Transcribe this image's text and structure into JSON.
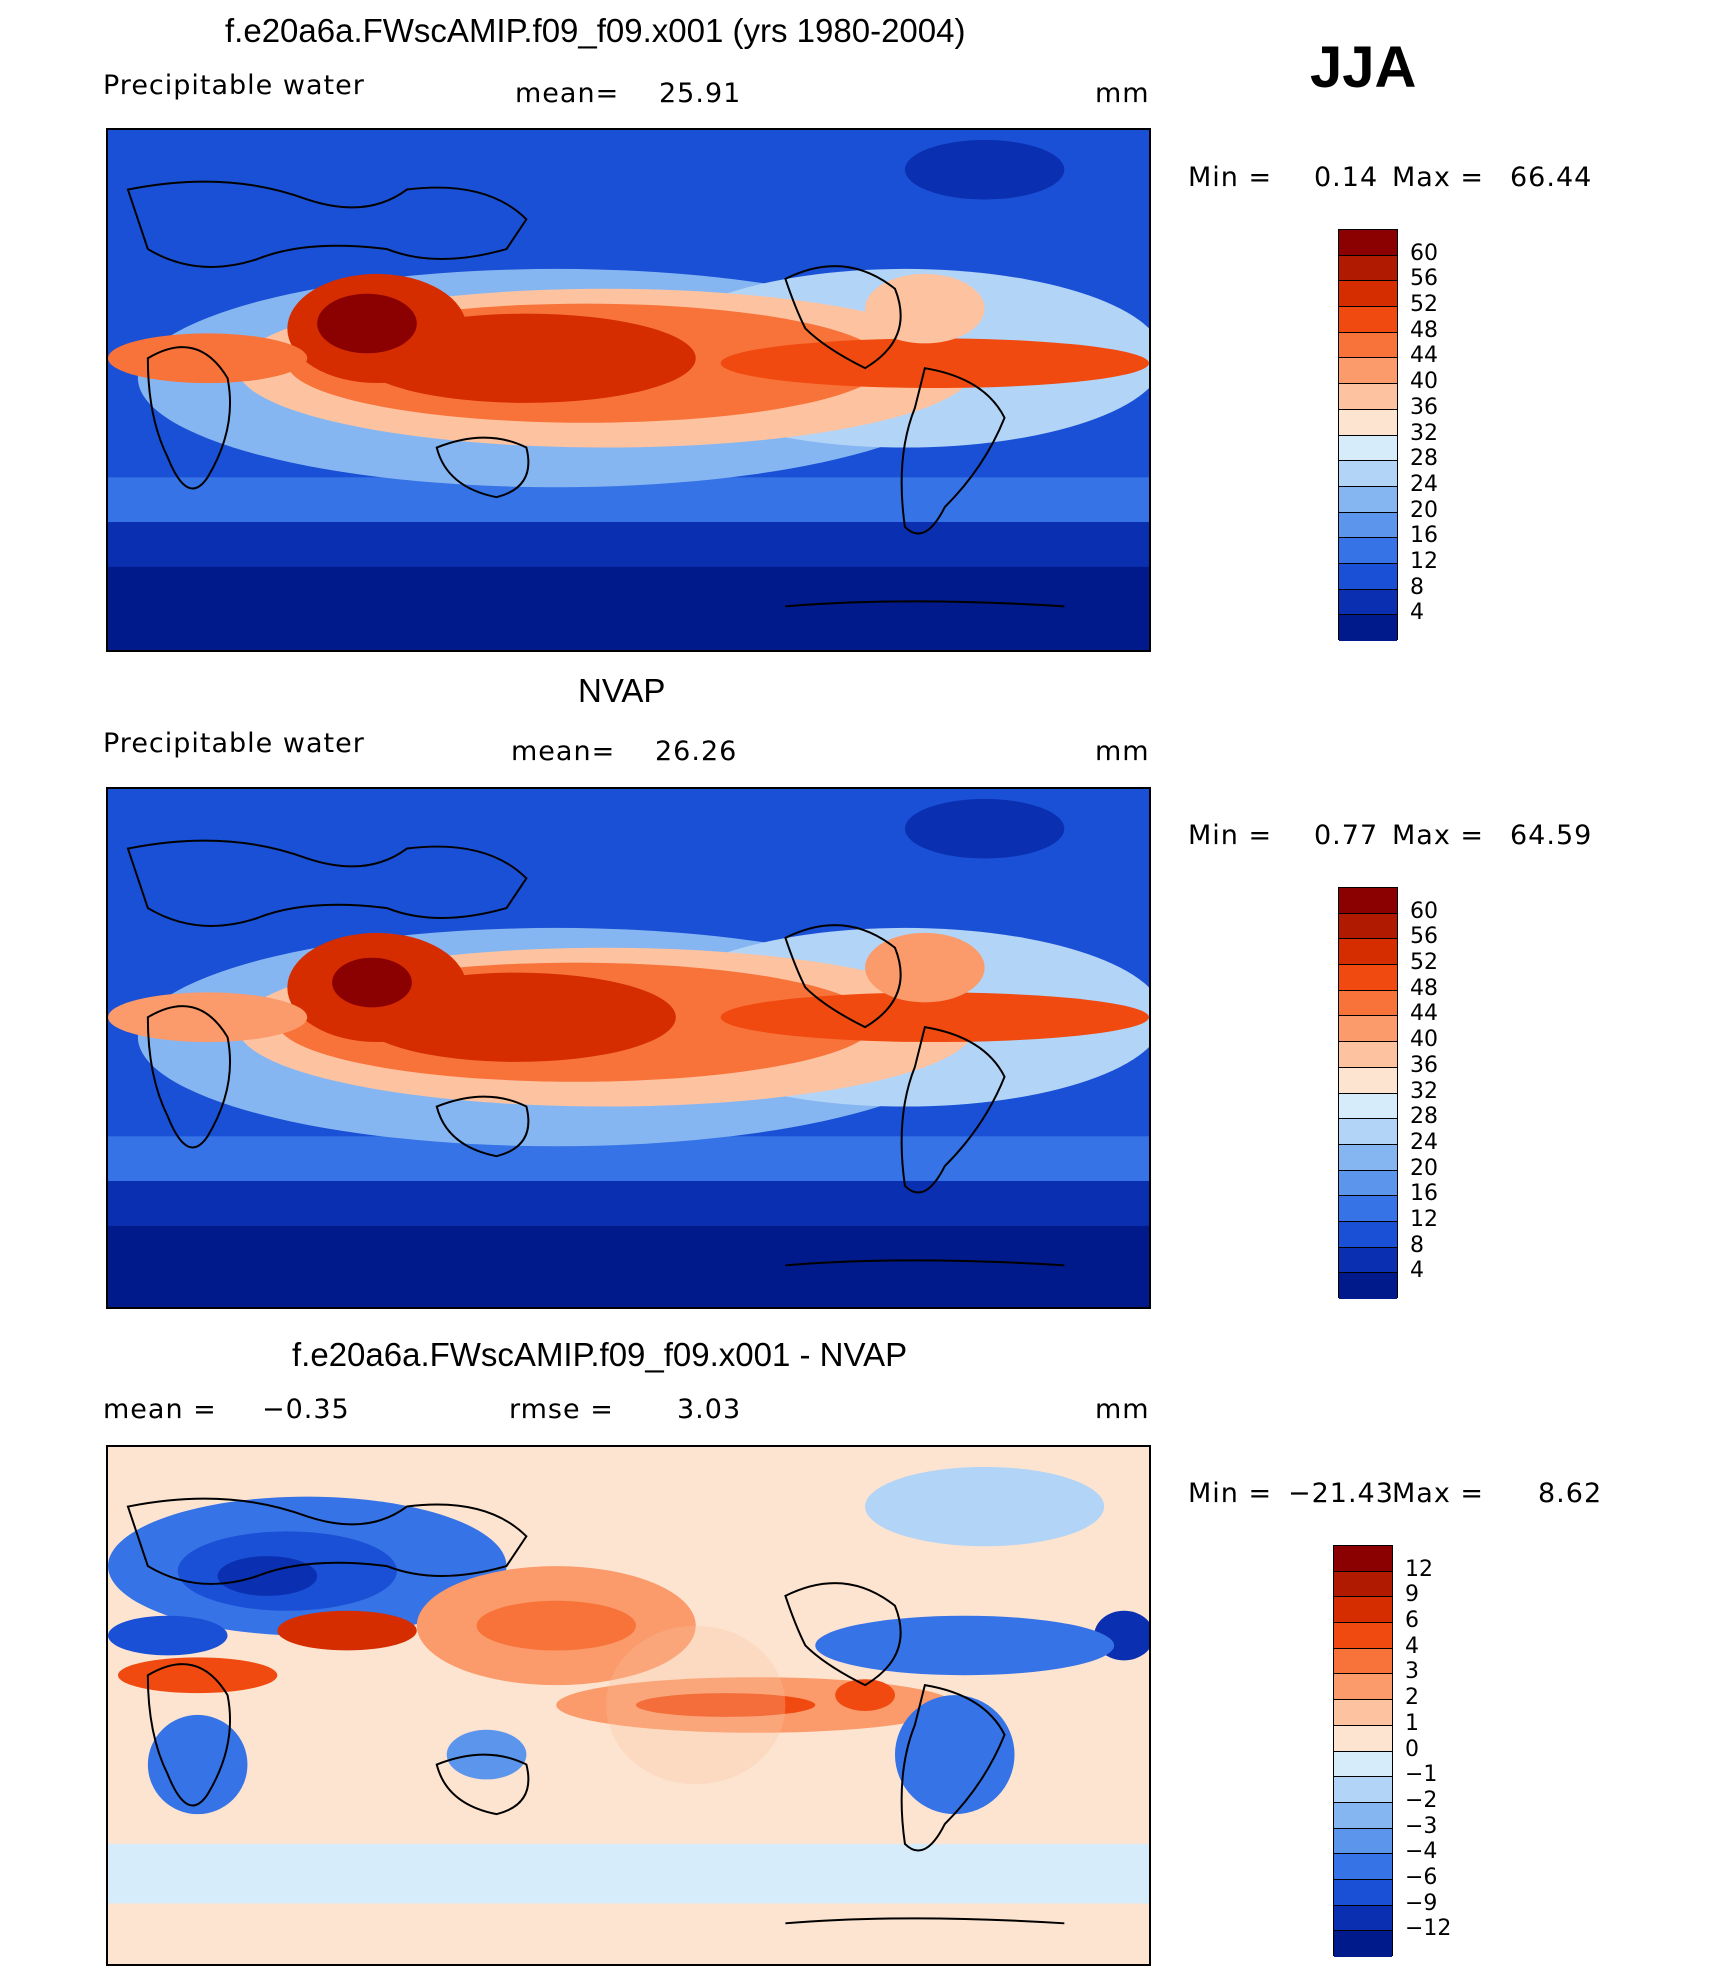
{
  "season": "JJA",
  "units": "mm",
  "panels": [
    {
      "title": "f.e20a6a.FWscAMIP.f09_f09.x001 (yrs 1980-2004)",
      "left_label": "Precipitable  water",
      "stat_label": "mean=",
      "stat_value": "25.91",
      "minmax": {
        "min_label": "Min  =",
        "min": "0.14",
        "max_label": "Max  =",
        "max": "66.44"
      }
    },
    {
      "title": "NVAP",
      "left_label": "Precipitable  water",
      "stat_label": "mean=",
      "stat_value": "26.26",
      "minmax": {
        "min_label": "Min  =",
        "min": "0.77",
        "max_label": "Max  =",
        "max": "64.59"
      }
    },
    {
      "title": "f.e20a6a.FWscAMIP.f09_f09.x001 - NVAP",
      "left_label": "mean  =",
      "left_value": "−0.35",
      "stat_label": "rmse  =",
      "stat_value": "3.03",
      "minmax": {
        "min_label": "Min  =",
        "min": "−21.43",
        "max_label": "Max  =",
        "max": "8.62"
      }
    }
  ],
  "colorbars": {
    "absolute": {
      "levels": [
        "60",
        "56",
        "52",
        "48",
        "44",
        "40",
        "36",
        "32",
        "28",
        "24",
        "20",
        "16",
        "12",
        "8",
        "4"
      ],
      "colors": [
        "#8b0000",
        "#b01a00",
        "#d52d00",
        "#f04a10",
        "#f8733a",
        "#fb9a6a",
        "#fdc3a0",
        "#fde4d0",
        "#d6ecfb",
        "#b2d4f7",
        "#86b6f2",
        "#5c96ec",
        "#3673e6",
        "#1a50d6",
        "#0a2fb0",
        "#001a8c"
      ]
    },
    "difference": {
      "levels": [
        "12",
        "9",
        "6",
        "4",
        "3",
        "2",
        "1",
        "0",
        "−1",
        "−2",
        "−3",
        "−4",
        "−6",
        "−9",
        "−12"
      ],
      "colors": [
        "#8b0000",
        "#b01a00",
        "#d52d00",
        "#f04a10",
        "#f8733a",
        "#fb9a6a",
        "#fdc3a0",
        "#fde4d0",
        "#d6ecfb",
        "#b2d4f7",
        "#86b6f2",
        "#5c96ec",
        "#3673e6",
        "#1a50d6",
        "#0a2fb0",
        "#001a8c"
      ]
    }
  }
}
